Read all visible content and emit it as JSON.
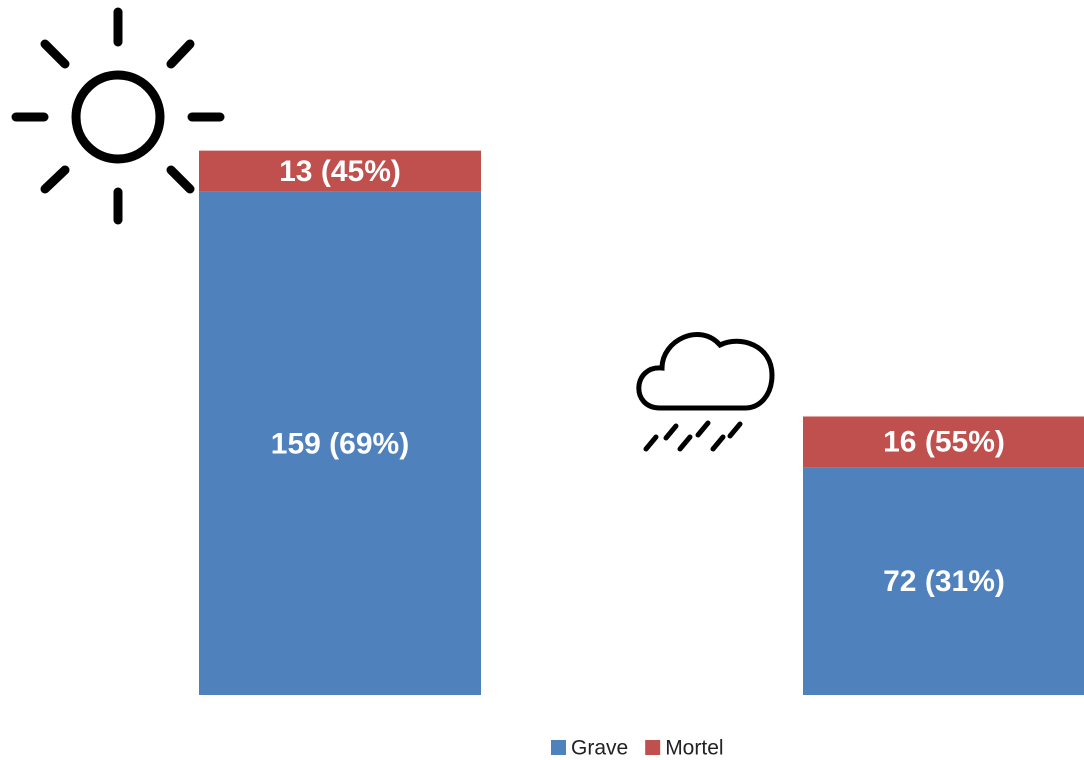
{
  "chart_data": {
    "type": "stacked_bar",
    "categories": [
      null,
      null
    ],
    "series": [
      {
        "name": "Grave",
        "color": "#4f81bd",
        "values": [
          159,
          72
        ],
        "value_labels": [
          "159 (69%)",
          "72 (31%)"
        ]
      },
      {
        "name": "Mortel",
        "color": "#c0504d",
        "values": [
          13,
          16
        ],
        "value_labels": [
          "13 (45%)",
          "16 (55%)"
        ]
      }
    ],
    "ylim": [
      0,
      200
    ]
  }
}
